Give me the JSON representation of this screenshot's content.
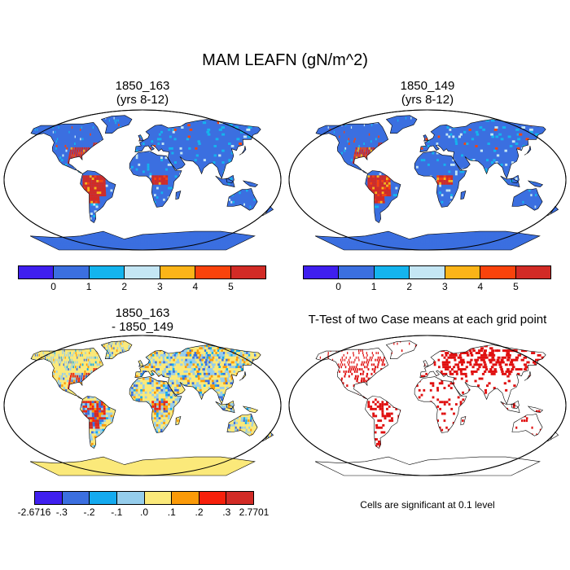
{
  "title": "MAM LEAFN (gN/m^2)",
  "panels": {
    "top_left": {
      "title_line1": "1850_163",
      "title_line2": "(yrs 8-12)"
    },
    "top_right": {
      "title_line1": "1850_149",
      "title_line2": "(yrs 8-12)"
    },
    "bottom_left": {
      "title_line1": "1850_163",
      "title_line2": "- 1850_149"
    },
    "bottom_right": {
      "title_line1": "T-Test of two Case means at each grid point",
      "title_line2": ""
    }
  },
  "colorbars": {
    "mean": {
      "colors": [
        "#3f1fef",
        "#3b6fe0",
        "#14b4ee",
        "#c4e6f4",
        "#fbb418",
        "#f9430c",
        "#d22b26"
      ],
      "labels": [
        "0",
        "1",
        "2",
        "3",
        "4",
        "5"
      ]
    },
    "diff": {
      "colors": [
        "#3f1fef",
        "#3b6fe0",
        "#14aaef",
        "#95cdec",
        "#fbe97a",
        "#fb9a08",
        "#f7200b",
        "#d22b26"
      ],
      "labels": [
        "-2.6716",
        "-.3",
        "-.2",
        "-.1",
        ".0",
        ".1",
        ".2",
        ".3",
        "2.7701"
      ]
    }
  },
  "significance_note": "Cells are significant at 0.1 level",
  "map_colors": {
    "ocean": "#ffffff",
    "coast": "#000000",
    "sig": "#e01010"
  }
}
